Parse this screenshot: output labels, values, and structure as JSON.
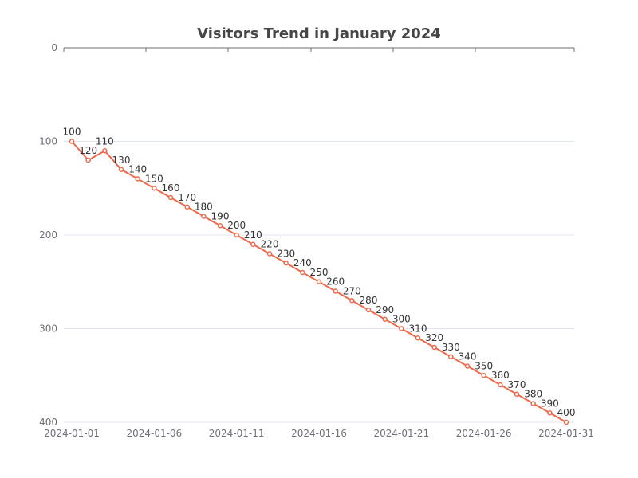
{
  "chart_data": {
    "type": "line",
    "title": "Visitors Trend in January 2024",
    "xlabel": "",
    "ylabel": "",
    "y_inverted": true,
    "ylim": [
      0,
      400
    ],
    "y_ticks": [
      0,
      100,
      200,
      300,
      400
    ],
    "x_tick_labels": [
      "2024-01-01",
      "2024-01-06",
      "2024-01-11",
      "2024-01-16",
      "2024-01-21",
      "2024-01-26",
      "2024-01-31"
    ],
    "grid": true,
    "legend": "none",
    "series_color": "#ee6a4c",
    "x": [
      "2024-01-01",
      "2024-01-02",
      "2024-01-03",
      "2024-01-04",
      "2024-01-05",
      "2024-01-06",
      "2024-01-07",
      "2024-01-08",
      "2024-01-09",
      "2024-01-10",
      "2024-01-11",
      "2024-01-12",
      "2024-01-13",
      "2024-01-14",
      "2024-01-15",
      "2024-01-16",
      "2024-01-17",
      "2024-01-18",
      "2024-01-19",
      "2024-01-20",
      "2024-01-21",
      "2024-01-22",
      "2024-01-23",
      "2024-01-24",
      "2024-01-25",
      "2024-01-26",
      "2024-01-27",
      "2024-01-28",
      "2024-01-29",
      "2024-01-30",
      "2024-01-31"
    ],
    "series": [
      {
        "values": [
          100,
          120,
          110,
          130,
          140,
          150,
          160,
          170,
          180,
          190,
          200,
          210,
          220,
          230,
          240,
          250,
          260,
          270,
          280,
          290,
          300,
          310,
          320,
          330,
          340,
          350,
          360,
          370,
          380,
          390,
          400
        ]
      }
    ]
  }
}
